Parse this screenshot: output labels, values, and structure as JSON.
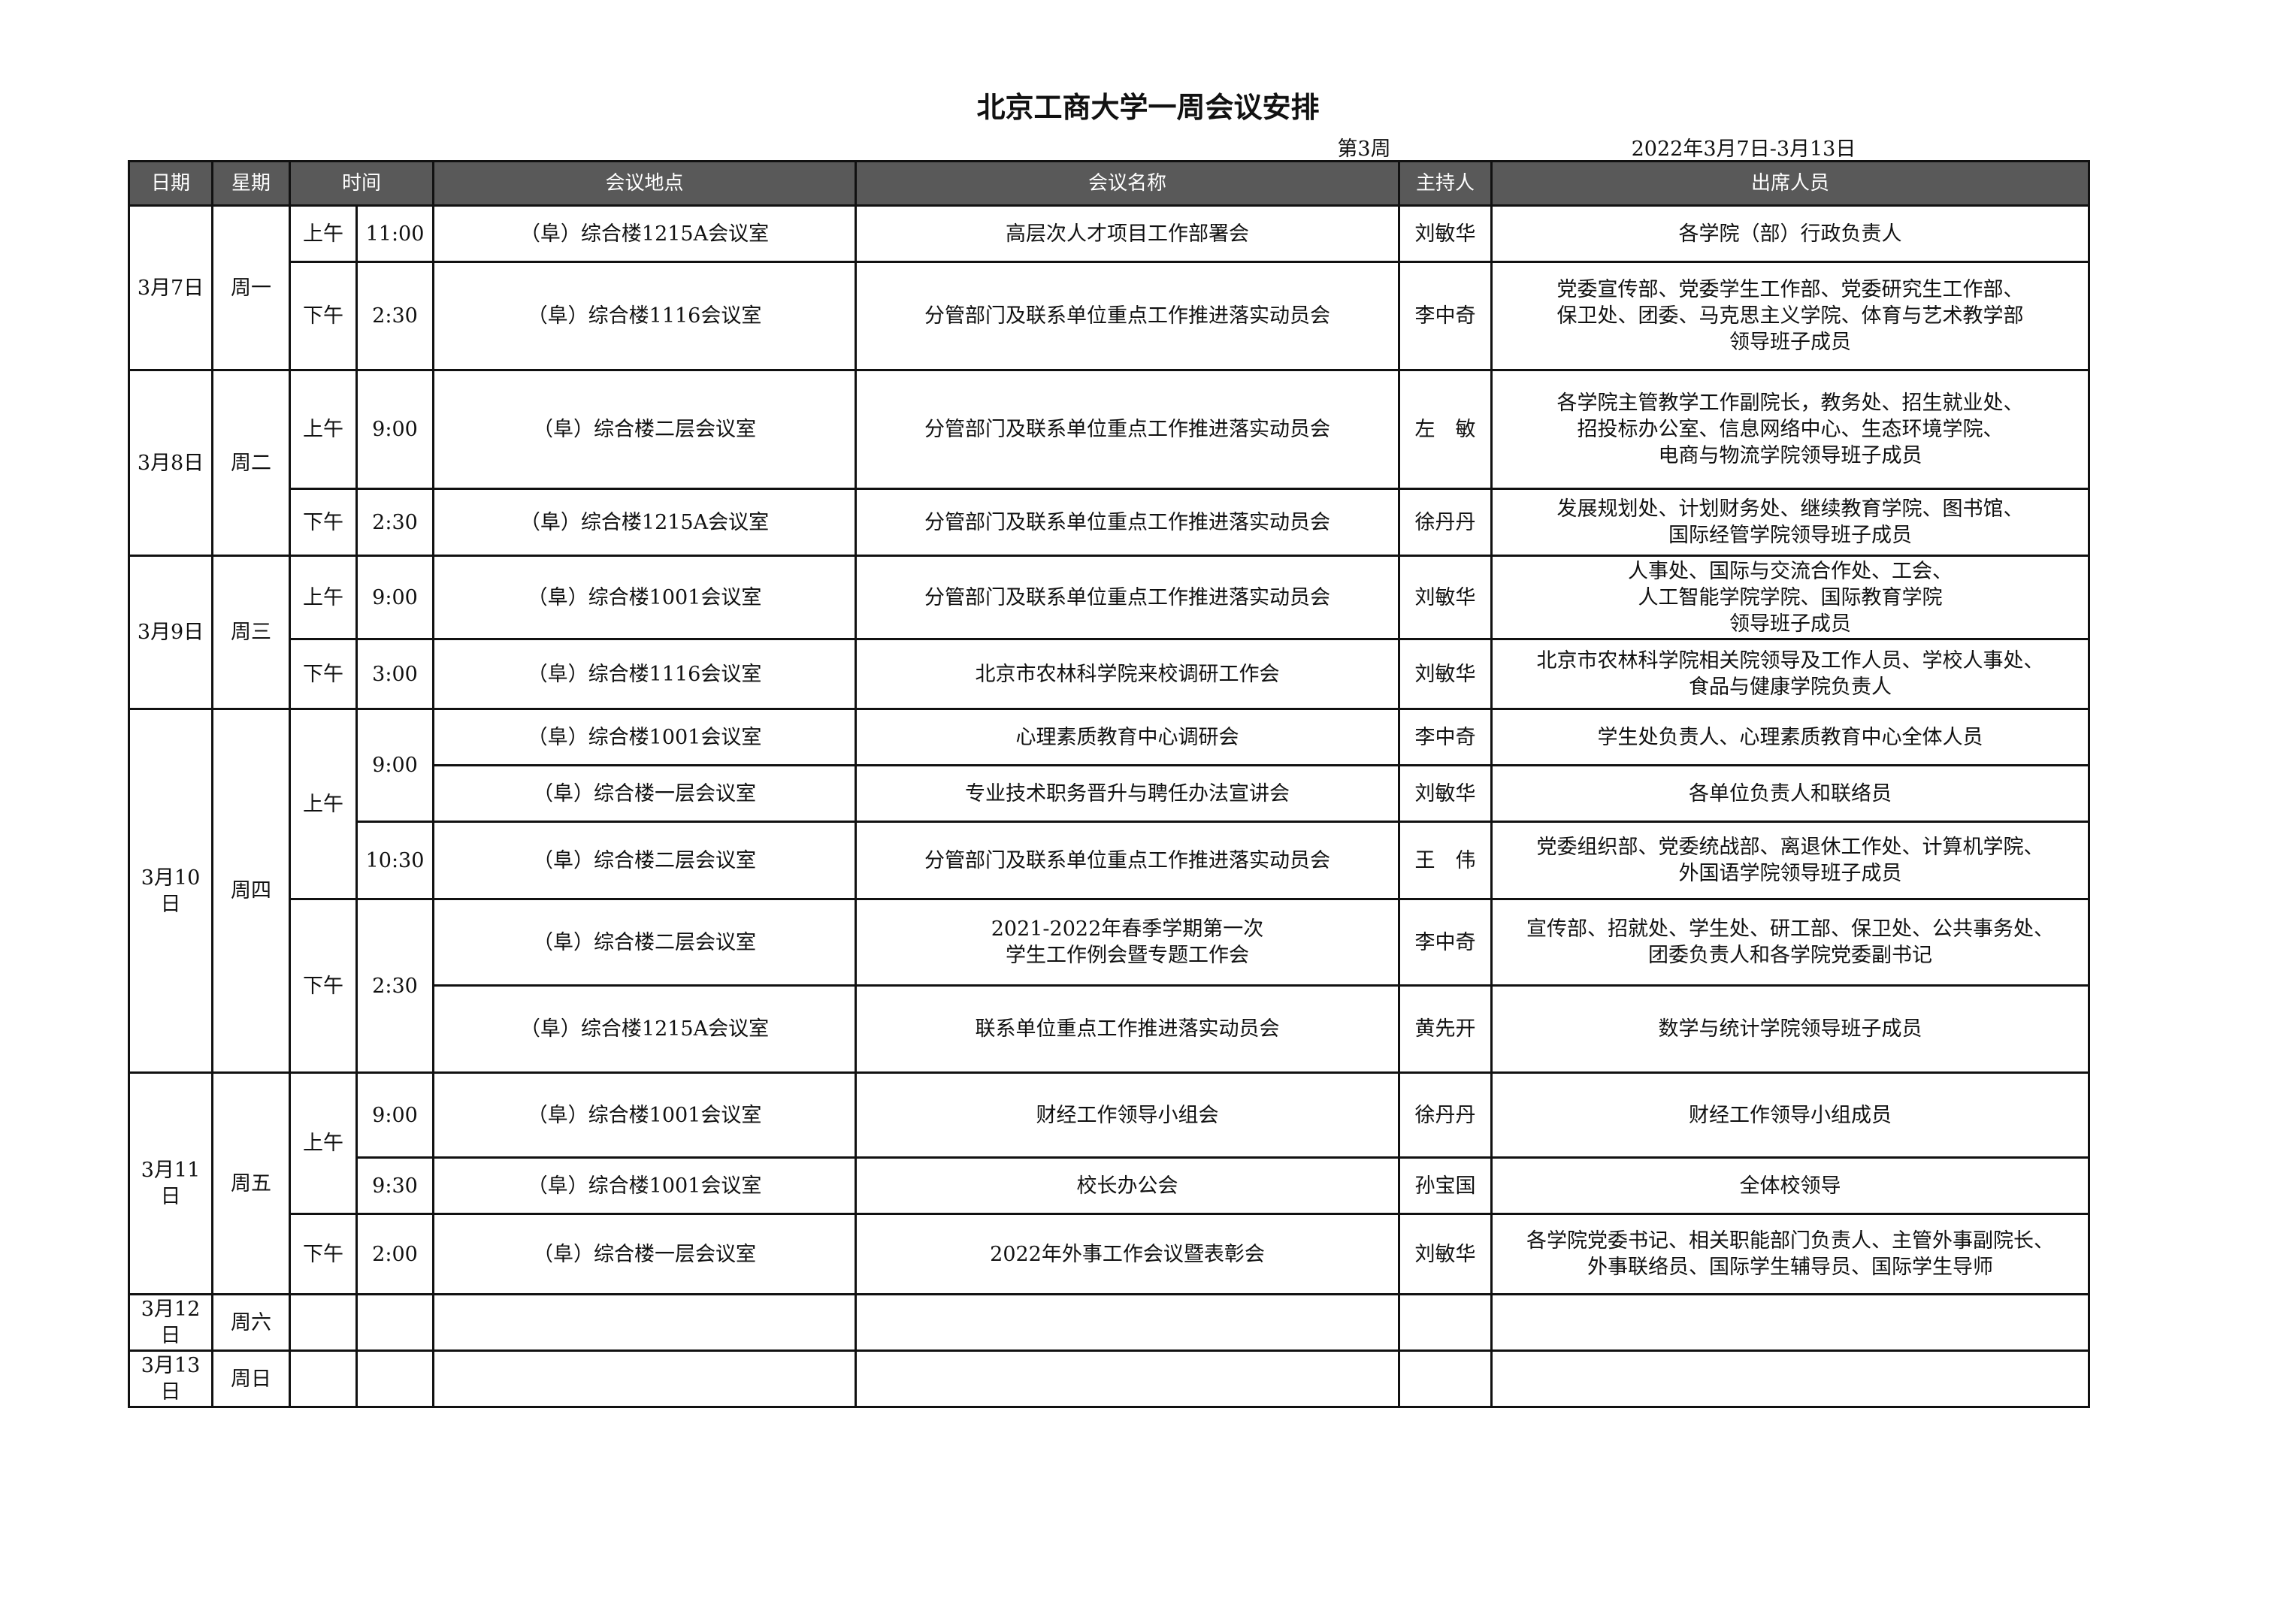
{
  "title": "北京工商大学一周会议安排",
  "week_label": "第3周",
  "date_range": "2022年3月7日-3月13日",
  "header_color": "#595959",
  "columns": {
    "date": "日期",
    "weekday": "星期",
    "time": "时间",
    "location": "会议地点",
    "name": "会议名称",
    "host": "主持人",
    "attendees": "出席人员"
  },
  "days": [
    {
      "date": "3月7日",
      "weekday": "周一",
      "periods": [
        {
          "period": "上午",
          "slots": [
            {
              "time": "11:00",
              "meetings": [
                {
                  "location": "（阜）综合楼1215A会议室",
                  "name": "高层次人才项目工作部署会",
                  "host": "刘敏华",
                  "attendees": "各学院（部）行政负责人"
                }
              ]
            }
          ]
        },
        {
          "period": "下午",
          "slots": [
            {
              "time": "2:30",
              "meetings": [
                {
                  "location": "（阜）综合楼1116会议室",
                  "name": "分管部门及联系单位重点工作推进落实动员会",
                  "host": "李中奇",
                  "attendees": "党委宣传部、党委学生工作部、党委研究生工作部、\n保卫处、团委、马克思主义学院、体育与艺术教学部\n领导班子成员"
                }
              ]
            }
          ]
        }
      ]
    },
    {
      "date": "3月8日",
      "weekday": "周二",
      "periods": [
        {
          "period": "上午",
          "slots": [
            {
              "time": "9:00",
              "meetings": [
                {
                  "location": "（阜）综合楼二层会议室",
                  "name": "分管部门及联系单位重点工作推进落实动员会",
                  "host": "左　敏",
                  "attendees": "各学院主管教学工作副院长，教务处、招生就业处、\n招投标办公室、信息网络中心、生态环境学院、\n电商与物流学院领导班子成员"
                }
              ]
            }
          ]
        },
        {
          "period": "下午",
          "slots": [
            {
              "time": "2:30",
              "meetings": [
                {
                  "location": "（阜）综合楼1215A会议室",
                  "name": "分管部门及联系单位重点工作推进落实动员会",
                  "host": "徐丹丹",
                  "attendees": "发展规划处、计划财务处、继续教育学院、图书馆、\n国际经管学院领导班子成员"
                }
              ]
            }
          ]
        }
      ]
    },
    {
      "date": "3月9日",
      "weekday": "周三",
      "periods": [
        {
          "period": "上午",
          "slots": [
            {
              "time": "9:00",
              "meetings": [
                {
                  "location": "（阜）综合楼1001会议室",
                  "name": "分管部门及联系单位重点工作推进落实动员会",
                  "host": "刘敏华",
                  "attendees": "人事处、国际与交流合作处、工会、\n人工智能学院学院、国际教育学院\n领导班子成员"
                }
              ]
            }
          ]
        },
        {
          "period": "下午",
          "slots": [
            {
              "time": "3:00",
              "meetings": [
                {
                  "location": "（阜）综合楼1116会议室",
                  "name": "北京市农林科学院来校调研工作会",
                  "host": "刘敏华",
                  "attendees": "北京市农林科学院相关院领导及工作人员、学校人事处、\n食品与健康学院负责人"
                }
              ]
            }
          ]
        }
      ]
    },
    {
      "date": "3月10日",
      "weekday": "周四",
      "periods": [
        {
          "period": "上午",
          "slots": [
            {
              "time": "9:00",
              "meetings": [
                {
                  "location": "（阜）综合楼1001会议室",
                  "name": "心理素质教育中心调研会",
                  "host": "李中奇",
                  "attendees": "学生处负责人、心理素质教育中心全体人员"
                },
                {
                  "location": "（阜）综合楼一层会议室",
                  "name": "专业技术职务晋升与聘任办法宣讲会",
                  "host": "刘敏华",
                  "attendees": "各单位负责人和联络员"
                }
              ]
            },
            {
              "time": "10:30",
              "meetings": [
                {
                  "location": "（阜）综合楼二层会议室",
                  "name": "分管部门及联系单位重点工作推进落实动员会",
                  "host": "王　伟",
                  "attendees": "党委组织部、党委统战部、离退休工作处、计算机学院、\n外国语学院领导班子成员"
                }
              ]
            }
          ]
        },
        {
          "period": "下午",
          "slots": [
            {
              "time": "2:30",
              "meetings": [
                {
                  "location": "（阜）综合楼二层会议室",
                  "name": "2021-2022年春季学期第一次\n学生工作例会暨专题工作会",
                  "host": "李中奇",
                  "attendees": "宣传部、招就处、学生处、研工部、保卫处、公共事务处、\n团委负责人和各学院党委副书记"
                },
                {
                  "location": "（阜）综合楼1215A会议室",
                  "name": "联系单位重点工作推进落实动员会",
                  "host": "黄先开",
                  "attendees": "数学与统计学院领导班子成员"
                }
              ]
            }
          ]
        }
      ]
    },
    {
      "date": "3月11日",
      "weekday": "周五",
      "periods": [
        {
          "period": "上午",
          "slots": [
            {
              "time": "9:00",
              "meetings": [
                {
                  "location": "（阜）综合楼1001会议室",
                  "name": "财经工作领导小组会",
                  "host": "徐丹丹",
                  "attendees": "财经工作领导小组成员"
                }
              ]
            },
            {
              "time": "9:30",
              "meetings": [
                {
                  "location": "（阜）综合楼1001会议室",
                  "name": "校长办公会",
                  "host": "孙宝国",
                  "attendees": "全体校领导"
                }
              ]
            }
          ]
        },
        {
          "period": "下午",
          "slots": [
            {
              "time": "2:00",
              "meetings": [
                {
                  "location": "（阜）综合楼一层会议室",
                  "name": "2022年外事工作会议暨表彰会",
                  "host": "刘敏华",
                  "attendees": "各学院党委书记、相关职能部门负责人、主管外事副院长、\n外事联络员、国际学生辅导员、国际学生导师"
                }
              ]
            }
          ]
        }
      ]
    },
    {
      "date": "3月12日",
      "weekday": "周六",
      "periods": []
    },
    {
      "date": "3月13日",
      "weekday": "周日",
      "periods": []
    }
  ]
}
